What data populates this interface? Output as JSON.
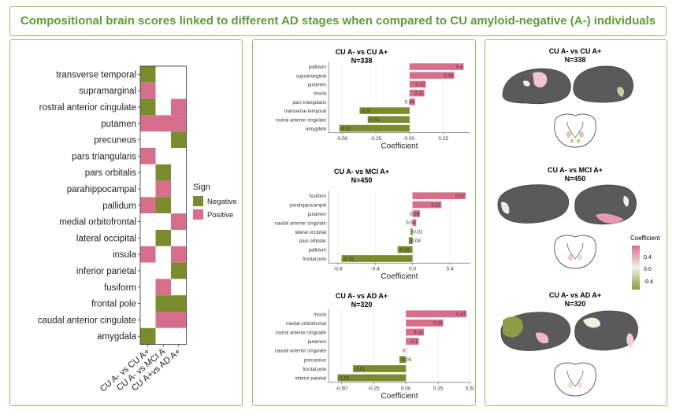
{
  "page": {
    "title": "Compositional brain scores linked to different AD stages when compared to CU amyloid-negative (A-) individuals"
  },
  "colors": {
    "negative": "#7b8c2e",
    "positive": "#d76f8c",
    "white": "#ffffff",
    "frame": "#8fc06a",
    "title": "#5f9b3a",
    "brain": "#5a5a5a"
  },
  "chart_data": [
    {
      "type": "heatmap",
      "rows": [
        "transverse temporal",
        "supramarginal",
        "rostral anterior cingulate",
        "putamen",
        "precuneus",
        "pars triangularis",
        "pars orbitalis",
        "parahippocampal",
        "pallidum",
        "medial orbitofrontal",
        "lateral occipital",
        "insula",
        "inferior parietal",
        "fusiform",
        "frontal pole",
        "caudal anterior cingulate",
        "amygdala"
      ],
      "columns": [
        "CU A- vs CU A+",
        "CU A- vs MCI A",
        "CU A+vs AD A+"
      ],
      "cells": [
        [
          "Negative",
          null,
          null
        ],
        [
          "Positive",
          null,
          null
        ],
        [
          "Negative",
          null,
          "Positive"
        ],
        [
          "Positive",
          "Positive",
          "Positive"
        ],
        [
          null,
          null,
          "Negative"
        ],
        [
          "Positive",
          null,
          null
        ],
        [
          null,
          "Negative",
          null
        ],
        [
          null,
          "Positive",
          null
        ],
        [
          "Positive",
          "Negative",
          null
        ],
        [
          null,
          null,
          "Positive"
        ],
        [
          null,
          "Negative",
          null
        ],
        [
          "Positive",
          null,
          "Positive"
        ],
        [
          null,
          null,
          "Negative"
        ],
        [
          null,
          "Positive",
          null
        ],
        [
          null,
          "Negative",
          "Negative"
        ],
        [
          null,
          "Positive",
          "Positive"
        ],
        [
          "Negative",
          null,
          null
        ]
      ],
      "legend": {
        "title": "Sign",
        "entries": [
          "Negative",
          "Positive"
        ]
      }
    },
    {
      "type": "bar",
      "orientation": "horizontal",
      "title": "CU A- vs CU A+",
      "subtitle": "N=338",
      "categories": [
        "pallidum",
        "supramarginal",
        "putamen",
        "insula",
        "pars triangularis",
        "transverse temporal",
        "rostral anterior cingulate",
        "amygdala"
      ],
      "values": [
        0.4,
        0.33,
        0.12,
        0.11,
        0.04,
        -0.37,
        -0.31,
        -0.52
      ],
      "labels": [
        "0.4",
        "0.33",
        "0.12",
        "0.11",
        "0.04",
        "-0.37",
        "-0.31",
        "-0.52"
      ],
      "xlim": [
        -0.6,
        0.45
      ],
      "ticks": [
        -0.5,
        -0.25,
        0.0,
        0.25
      ],
      "tick_labels": [
        "-0.50",
        "-0.25",
        "0.00",
        "0.25"
      ],
      "xlabel": "Coefficient"
    },
    {
      "type": "bar",
      "orientation": "horizontal",
      "title": "CU A- vs MCI A+",
      "subtitle": "N=450",
      "categories": [
        "fusiform",
        "parahippocampal",
        "putamen",
        "caudal anterior cingulate",
        "lateral occipital",
        "pars orbitalis",
        "pallidum",
        "frontal pole"
      ],
      "values": [
        0.57,
        0.31,
        0.08,
        0.04,
        -0.02,
        -0.04,
        -0.16,
        -0.76
      ],
      "labels": [
        "0.57",
        "0.31",
        "0.08",
        "0.04",
        "-0.02",
        "-0.04",
        "-0.16",
        "-0.76"
      ],
      "xlim": [
        -0.9,
        0.62
      ],
      "ticks": [
        -0.8,
        -0.4,
        0.0,
        0.4
      ],
      "tick_labels": [
        "-0.8",
        "-0.4",
        "0.0",
        "0.4"
      ],
      "xlabel": "Coefficient"
    },
    {
      "type": "bar",
      "orientation": "horizontal",
      "title": "CU A- vs AD A+",
      "subtitle": "N=320",
      "categories": [
        "insula",
        "medial orbitofrontal",
        "rostral anterior cingulate",
        "putamen",
        "caudal anterior cingulate",
        "precuneus",
        "frontal pole",
        "inferior parietal"
      ],
      "values": [
        0.47,
        0.29,
        0.14,
        0.1,
        0.0,
        -0.05,
        -0.41,
        -0.53
      ],
      "labels": [
        "0.47",
        "0.29",
        "0.14",
        "0.1",
        "0",
        "-0.05",
        "-0.41",
        "-0.53"
      ],
      "xlim": [
        -0.6,
        0.5
      ],
      "ticks": [
        -0.5,
        -0.25,
        0.0,
        0.25,
        0.5
      ],
      "tick_labels": [
        "-0.50",
        "-0.25",
        "0.00",
        "0.25",
        "0.50"
      ],
      "xlabel": "Coefficient"
    }
  ],
  "brain_panels": [
    {
      "title": "CU A- vs CU A+",
      "subtitle": "N=338"
    },
    {
      "title": "CU A- vs MCI A+",
      "subtitle": "N=450"
    },
    {
      "title": "CU A- vs AD A+",
      "subtitle": "N=320"
    }
  ],
  "colorbar": {
    "title": "Coefficient",
    "tick_labels": [
      "0.4",
      "0.0",
      "-0.4"
    ]
  }
}
